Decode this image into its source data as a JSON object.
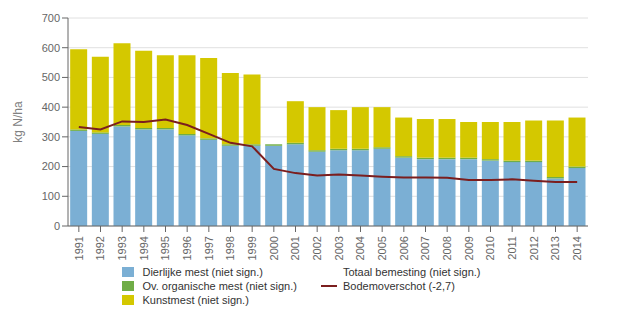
{
  "chart_data": {
    "type": "bar",
    "stacked": true,
    "categories": [
      "1991",
      "1992",
      "1993",
      "1994",
      "1995",
      "1996",
      "1997",
      "1998",
      "1999",
      "2000",
      "2001",
      "2002",
      "2003",
      "2004",
      "2005",
      "2006",
      "2007",
      "2008",
      "2009",
      "2010",
      "2011",
      "2012",
      "2013",
      "2014"
    ],
    "ylabel": "kg N/ha",
    "ylim": [
      0,
      700
    ],
    "yticks": [
      0,
      100,
      200,
      300,
      400,
      500,
      600,
      700
    ],
    "grid": true,
    "legend": "bottom",
    "series": [
      {
        "name": "Dierlijke mest (niet sign.)",
        "type": "bar",
        "color": "#7BAFD4",
        "values": [
          320,
          310,
          335,
          325,
          325,
          305,
          290,
          270,
          270,
          270,
          275,
          250,
          255,
          255,
          260,
          230,
          225,
          225,
          225,
          220,
          215,
          215,
          160,
          195
        ]
      },
      {
        "name": "Ov. organische mest (niet sign.)",
        "type": "bar",
        "color": "#70AD47",
        "values": [
          5,
          5,
          5,
          5,
          5,
          5,
          5,
          5,
          5,
          5,
          5,
          5,
          5,
          5,
          5,
          5,
          5,
          5,
          5,
          5,
          5,
          5,
          5,
          5
        ]
      },
      {
        "name": "Kunstmest (niet sign.)",
        "type": "bar",
        "color": "#D4C800",
        "values": [
          270,
          255,
          275,
          260,
          245,
          265,
          270,
          240,
          235,
          0,
          140,
          145,
          130,
          140,
          135,
          130,
          130,
          130,
          120,
          125,
          130,
          135,
          190,
          165
        ]
      },
      {
        "name": "Totaal bemesting (niet sign.)",
        "type": "bar",
        "color": "none",
        "values": [
          null,
          null,
          null,
          null,
          null,
          null,
          null,
          null,
          null,
          null,
          null,
          null,
          null,
          null,
          null,
          null,
          null,
          null,
          null,
          null,
          null,
          null,
          null,
          null
        ]
      },
      {
        "name": "Bodemoverschot (-2,7)",
        "type": "line",
        "color": "#7B1E1E",
        "values": [
          333,
          325,
          352,
          350,
          358,
          340,
          310,
          280,
          268,
          192,
          178,
          170,
          173,
          170,
          166,
          163,
          163,
          162,
          155,
          155,
          157,
          152,
          148,
          148
        ]
      }
    ]
  }
}
